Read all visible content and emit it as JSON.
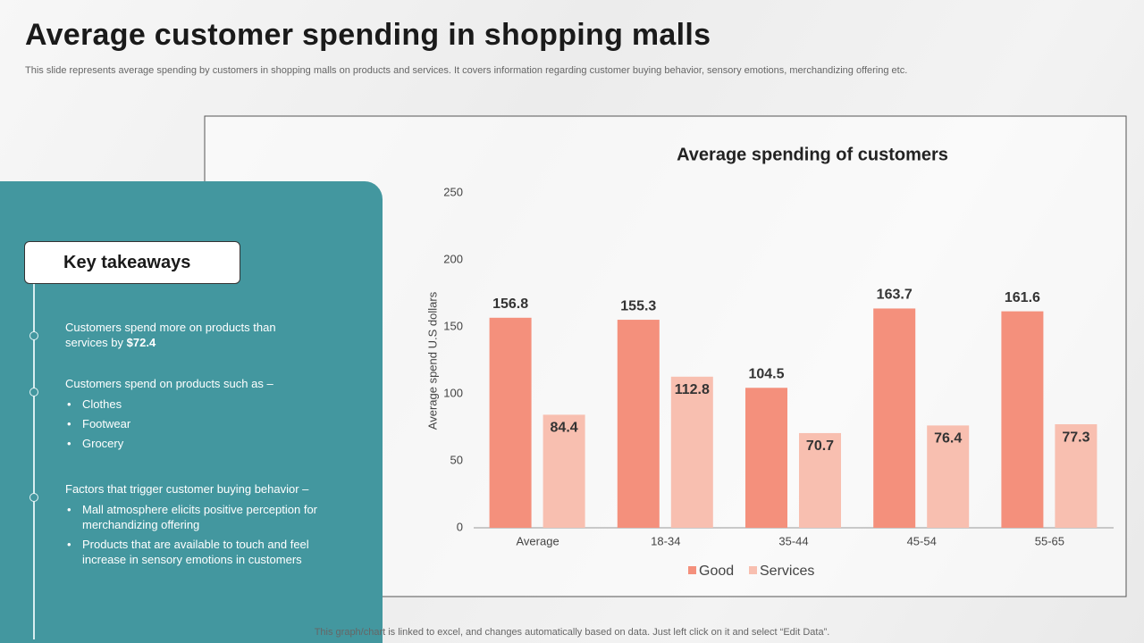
{
  "header": {
    "title": "Average customer spending in shopping malls",
    "subtitle": "This slide represents average spending by customers in shopping malls on products and services. It covers information regarding customer buying behavior, sensory emotions, merchandizing offering etc."
  },
  "takeaways": {
    "title": "Key takeaways",
    "items": [
      {
        "text": "Customers spend more on products than services by",
        "highlight": "$72.4"
      },
      {
        "text": "Customers spend on products such as –",
        "bullets": [
          "Clothes",
          "Footwear",
          "Grocery"
        ]
      },
      {
        "text": "Factors that trigger customer buying behavior  –",
        "bullets": [
          "Mall atmosphere elicits positive perception for merchandizing offering",
          "Products that are available  to touch and feel increase in sensory emotions in customers"
        ]
      }
    ]
  },
  "footer": "This graph/chart is linked to excel,  and changes automatically based on data. Just left click on it and select “Edit Data”.",
  "chart_data": {
    "type": "bar",
    "title": "Average spending of customers",
    "y_label": "Average spend U.S dollars",
    "categories": [
      "Average",
      "18-34",
      "35-44",
      "45-54",
      "55-65"
    ],
    "series": [
      {
        "name": "Good",
        "color": "#f4907c",
        "values": [
          156.8,
          155.3,
          104.5,
          163.7,
          161.6
        ]
      },
      {
        "name": "Services",
        "color": "#f8bfb0",
        "values": [
          84.4,
          112.8,
          70.7,
          76.4,
          77.3
        ]
      }
    ],
    "ylim": [
      0,
      250
    ],
    "yticks": [
      0,
      50,
      100,
      150,
      200,
      250
    ],
    "grid": false,
    "legend": "bottom"
  }
}
